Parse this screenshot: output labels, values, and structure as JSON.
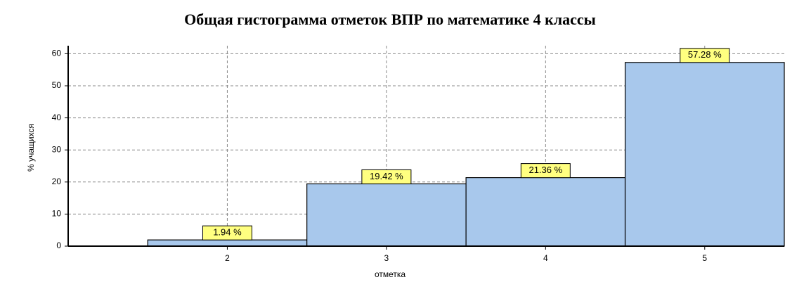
{
  "chart_data": {
    "type": "bar",
    "title": "Общая гистограмма отметок ВПР по математике 4 классы",
    "ylabel": "% учащихся",
    "xlabel": "отметка",
    "x": [
      2,
      3,
      4,
      5
    ],
    "values": [
      1.94,
      19.42,
      21.36,
      57.28
    ],
    "value_labels": [
      "1.94 %",
      "19.42 %",
      "21.36 %",
      "57.28 %"
    ],
    "color": "#a8c8ec",
    "xlim": [
      1,
      5.5
    ],
    "xticks": [
      2,
      3,
      4,
      5
    ],
    "ylim": [
      0,
      62.5
    ],
    "yticks": [
      0,
      10,
      20,
      30,
      40,
      50,
      60
    ],
    "grid": true
  }
}
